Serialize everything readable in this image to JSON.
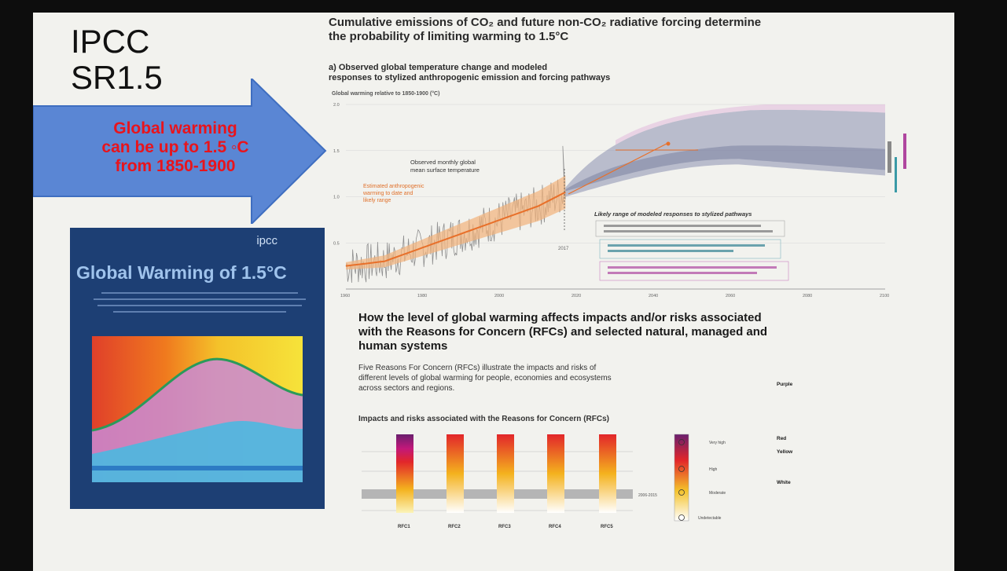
{
  "slide": {
    "title_lines": [
      "IPCC",
      "SR1.5"
    ],
    "arrow_lines": [
      "Global warming",
      "can be up to 1.5 ◦C",
      "from 1850-1900"
    ],
    "cover": {
      "logo": "ipcc",
      "title": "Global Warming of 1.5°C"
    },
    "heading_lines": [
      "Cumulative emissions of CO₂ and future non-CO₂ radiative forcing determine",
      "the probability of limiting warming to 1.5°C"
    ],
    "subheading_lines": [
      "a) Observed global temperature change and modeled",
      "responses to stylized anthropogenic emission and forcing pathways"
    ],
    "y_axis_label": "Global warming relative to 1850-1900 (°C)",
    "annotations": {
      "observed_lines": [
        "Observed monthly global",
        "mean surface temperature"
      ],
      "estimated_lines": [
        "Estimated anthropogenic",
        "warming to date and",
        "likely range"
      ],
      "year_2017": "2017",
      "likely_title": "Likely range of modeled responses to stylized pathways"
    },
    "section_heading_lines": [
      "How the level of global warming affects impacts and/or risks associated",
      "with the Reasons for Concern (RFCs) and selected natural, managed and",
      "human systems"
    ],
    "section_para_lines": [
      "Five Reasons For Concern (RFCs) illustrate the impacts and risks of",
      "different levels of global warming for people, economies and ecosystems",
      "across sectors and regions."
    ],
    "rfc_heading": "Impacts and risks associated with the Reasons for Concern (RFCs)",
    "rfc_labels": [
      "RFC1",
      "RFC2",
      "RFC3",
      "RFC4",
      "RFC5"
    ],
    "risk_levels": [
      "Very high",
      "High",
      "Moderate",
      "Undetectable"
    ],
    "legend_terms": [
      "Purple",
      "Red",
      "Yellow",
      "White"
    ],
    "band_label": "2006-2015"
  },
  "chart_data": {
    "type": "line",
    "x_range": [
      1960,
      2100
    ],
    "y_range": [
      0,
      2.0
    ],
    "x_ticks": [
      "1960",
      "1980",
      "2000",
      "2020",
      "2040",
      "2060",
      "2080",
      "2100"
    ],
    "y_ticks": [
      "0.5",
      "1.0",
      "1.5",
      "2.0"
    ],
    "series": [
      {
        "x": [
          1960,
          1970,
          1980,
          1990,
          2000,
          2010,
          2017
        ],
        "y": [
          0.25,
          0.3,
          0.45,
          0.6,
          0.75,
          0.9,
          1.05
        ]
      }
    ],
    "colors": {
      "observed": "#8f8f8f",
      "estimated": "#e8702a",
      "uncertainty_band": "#f2b27a",
      "modeled_range": "#8a8fb0",
      "purple_bar": "#b0479f",
      "teal_bar": "#3a9aa6"
    }
  }
}
